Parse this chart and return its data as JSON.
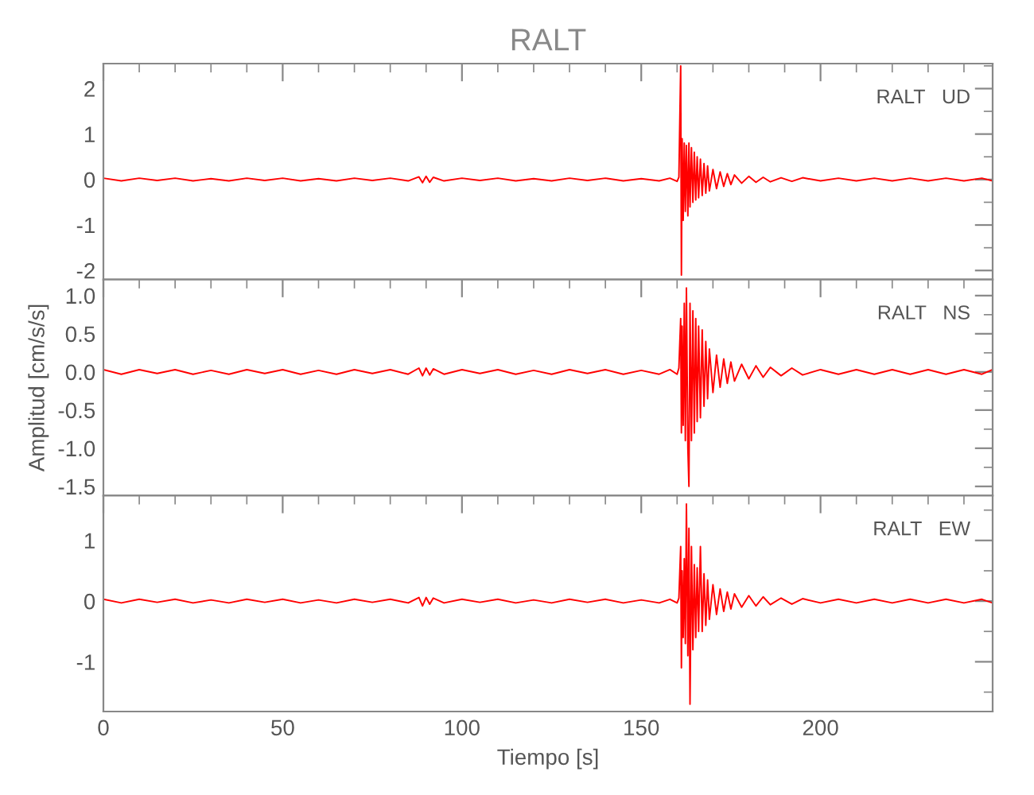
{
  "chart_data": [
    {
      "type": "line",
      "title": "RALT",
      "annotations": [
        "RALT   UD"
      ],
      "xlim": [
        0,
        248
      ],
      "xticks": [
        0,
        50,
        100,
        150,
        200
      ],
      "ylim": [
        -2.2,
        2.55
      ],
      "yticks": [
        -2,
        -1,
        0,
        1,
        2
      ],
      "tick_labels": "y",
      "grid": false,
      "marker": "none",
      "line_style": "solid",
      "x": [
        0,
        5,
        10,
        15,
        20,
        25,
        30,
        35,
        40,
        45,
        50,
        55,
        60,
        65,
        70,
        75,
        80,
        85,
        88,
        89,
        90,
        91,
        92,
        95,
        100,
        105,
        110,
        115,
        120,
        125,
        130,
        135,
        140,
        145,
        150,
        155,
        158,
        160,
        160.5,
        161,
        161.2,
        161.4,
        161.7,
        162,
        162.3,
        162.6,
        163,
        163.3,
        163.6,
        164,
        164.4,
        164.8,
        165.2,
        165.6,
        166,
        166.5,
        167,
        167.5,
        168,
        168.5,
        169,
        170,
        171,
        172,
        173,
        174,
        175,
        176,
        178,
        180,
        182,
        184,
        186,
        189,
        192,
        195,
        200,
        205,
        210,
        215,
        220,
        225,
        230,
        235,
        240,
        245,
        248
      ],
      "series": [
        {
          "color": "#ff0000",
          "values": [
            0.03,
            -0.03,
            0.03,
            -0.02,
            0.03,
            -0.03,
            0.02,
            -0.03,
            0.03,
            -0.02,
            0.03,
            -0.03,
            0.02,
            -0.03,
            0.03,
            -0.02,
            0.03,
            -0.03,
            0.06,
            -0.07,
            0.07,
            -0.06,
            0.05,
            -0.03,
            0.03,
            -0.02,
            0.03,
            -0.03,
            0.02,
            -0.03,
            0.03,
            -0.02,
            0.03,
            -0.03,
            0.02,
            -0.03,
            0.03,
            -0.04,
            0.05,
            2.5,
            -2.1,
            0.9,
            -0.9,
            0.8,
            -0.7,
            0.75,
            -0.8,
            0.8,
            -0.6,
            0.7,
            -0.5,
            0.6,
            -0.45,
            0.5,
            -0.4,
            0.45,
            -0.35,
            0.35,
            -0.3,
            0.3,
            -0.25,
            0.22,
            -0.2,
            0.17,
            -0.15,
            0.13,
            -0.11,
            0.1,
            -0.08,
            0.07,
            -0.06,
            0.05,
            -0.05,
            0.04,
            -0.04,
            0.04,
            -0.03,
            0.03,
            -0.03,
            0.03,
            -0.03,
            0.03,
            -0.03,
            0.03,
            -0.03,
            0.03,
            -0.03
          ]
        }
      ]
    },
    {
      "type": "line",
      "ylabel": "Amplitud [cm/s/s]",
      "annotations": [
        "RALT   NS"
      ],
      "xlim": [
        0,
        248
      ],
      "xticks": [
        0,
        50,
        100,
        150,
        200
      ],
      "ylim": [
        -1.62,
        1.21
      ],
      "yticks": [
        {
          "value": -1.5,
          "label": "-1.5"
        },
        {
          "value": -1.0,
          "label": "-1.0"
        },
        {
          "value": -0.5,
          "label": "-0.5"
        },
        {
          "value": 0.0,
          "label": "0.0"
        },
        {
          "value": 0.5,
          "label": "0.5"
        },
        {
          "value": 1.0,
          "label": "1.0"
        }
      ],
      "tick_labels": "y",
      "grid": false,
      "marker": "none",
      "line_style": "solid",
      "x": [
        0,
        5,
        10,
        15,
        20,
        25,
        30,
        35,
        40,
        45,
        50,
        55,
        60,
        65,
        70,
        75,
        80,
        85,
        88,
        89,
        90,
        91,
        92,
        95,
        100,
        105,
        110,
        115,
        120,
        125,
        130,
        135,
        140,
        145,
        150,
        155,
        158,
        160,
        160.5,
        161,
        161.2,
        161.4,
        161.7,
        162,
        162.3,
        162.6,
        163,
        163.3,
        163.6,
        164,
        164.4,
        164.8,
        165.2,
        165.6,
        166,
        166.5,
        167,
        167.5,
        168,
        168.5,
        169,
        170,
        171,
        172,
        173,
        174,
        175,
        176,
        178,
        180,
        182,
        184,
        186,
        189,
        192,
        195,
        200,
        205,
        210,
        215,
        220,
        225,
        230,
        235,
        240,
        245,
        248
      ],
      "series": [
        {
          "color": "#ff0000",
          "values": [
            0.03,
            -0.03,
            0.03,
            -0.02,
            0.03,
            -0.03,
            0.02,
            -0.03,
            0.03,
            -0.02,
            0.03,
            -0.03,
            0.02,
            -0.03,
            0.03,
            -0.02,
            0.03,
            -0.03,
            0.05,
            -0.05,
            0.05,
            -0.04,
            0.04,
            -0.03,
            0.03,
            -0.02,
            0.03,
            -0.03,
            0.02,
            -0.03,
            0.03,
            -0.02,
            0.03,
            -0.03,
            0.02,
            -0.03,
            0.03,
            -0.03,
            0.05,
            0.7,
            -0.8,
            0.6,
            -0.7,
            0.9,
            -0.9,
            1.1,
            -1.0,
            -1.5,
            0.9,
            -0.9,
            0.8,
            -0.8,
            0.7,
            -0.65,
            0.6,
            -0.6,
            0.55,
            -0.45,
            0.4,
            -0.35,
            0.3,
            -0.27,
            0.22,
            -0.2,
            0.17,
            -0.15,
            0.13,
            -0.12,
            0.1,
            -0.09,
            0.08,
            -0.07,
            0.06,
            -0.05,
            0.05,
            -0.04,
            0.03,
            -0.03,
            0.03,
            -0.03,
            0.03,
            -0.03,
            0.03,
            -0.03,
            0.03,
            -0.03,
            0.03
          ]
        }
      ]
    },
    {
      "type": "line",
      "xlabel": "Tiempo [s]",
      "annotations": [
        "RALT   EW"
      ],
      "xlim": [
        0,
        248
      ],
      "xticks": [
        0,
        50,
        100,
        150,
        200
      ],
      "ylim": [
        -1.82,
        1.74
      ],
      "yticks": [
        -1,
        0,
        1
      ],
      "grid": false,
      "marker": "none",
      "line_style": "solid",
      "x": [
        0,
        5,
        10,
        15,
        20,
        25,
        30,
        35,
        40,
        45,
        50,
        55,
        60,
        65,
        70,
        75,
        80,
        85,
        88,
        89,
        90,
        91,
        92,
        95,
        100,
        105,
        110,
        115,
        120,
        125,
        130,
        135,
        140,
        145,
        150,
        155,
        158,
        160,
        160.5,
        161,
        161.2,
        161.4,
        161.7,
        162,
        162.3,
        162.6,
        163,
        163.3,
        163.6,
        164,
        164.4,
        164.8,
        165.2,
        165.6,
        166,
        166.5,
        167,
        167.5,
        168,
        168.5,
        169,
        170,
        171,
        172,
        173,
        174,
        175,
        176,
        178,
        180,
        182,
        184,
        186,
        189,
        192,
        195,
        200,
        205,
        210,
        215,
        220,
        225,
        230,
        235,
        240,
        245,
        248
      ],
      "series": [
        {
          "color": "#ff0000",
          "values": [
            0.03,
            -0.03,
            0.03,
            -0.02,
            0.03,
            -0.03,
            0.02,
            -0.03,
            0.03,
            -0.02,
            0.03,
            -0.03,
            0.02,
            -0.03,
            0.03,
            -0.02,
            0.03,
            -0.03,
            0.06,
            -0.08,
            0.06,
            -0.05,
            0.05,
            -0.03,
            0.03,
            -0.02,
            0.03,
            -0.03,
            0.02,
            -0.03,
            0.03,
            -0.02,
            0.03,
            -0.03,
            0.02,
            -0.03,
            0.03,
            -0.03,
            0.05,
            0.9,
            -1.1,
            0.5,
            -0.6,
            0.7,
            -0.7,
            1.6,
            -0.9,
            1.2,
            -1.7,
            0.9,
            -0.8,
            0.6,
            -0.6,
            0.55,
            -0.5,
            0.9,
            -0.5,
            0.45,
            -0.4,
            0.35,
            -0.3,
            0.27,
            -0.22,
            0.2,
            -0.17,
            0.15,
            -0.13,
            0.12,
            -0.1,
            0.09,
            -0.08,
            0.07,
            -0.06,
            0.05,
            -0.05,
            0.04,
            -0.03,
            0.03,
            -0.03,
            0.03,
            -0.03,
            0.03,
            -0.03,
            0.03,
            -0.03,
            0.03,
            -0.03
          ]
        }
      ]
    }
  ]
}
